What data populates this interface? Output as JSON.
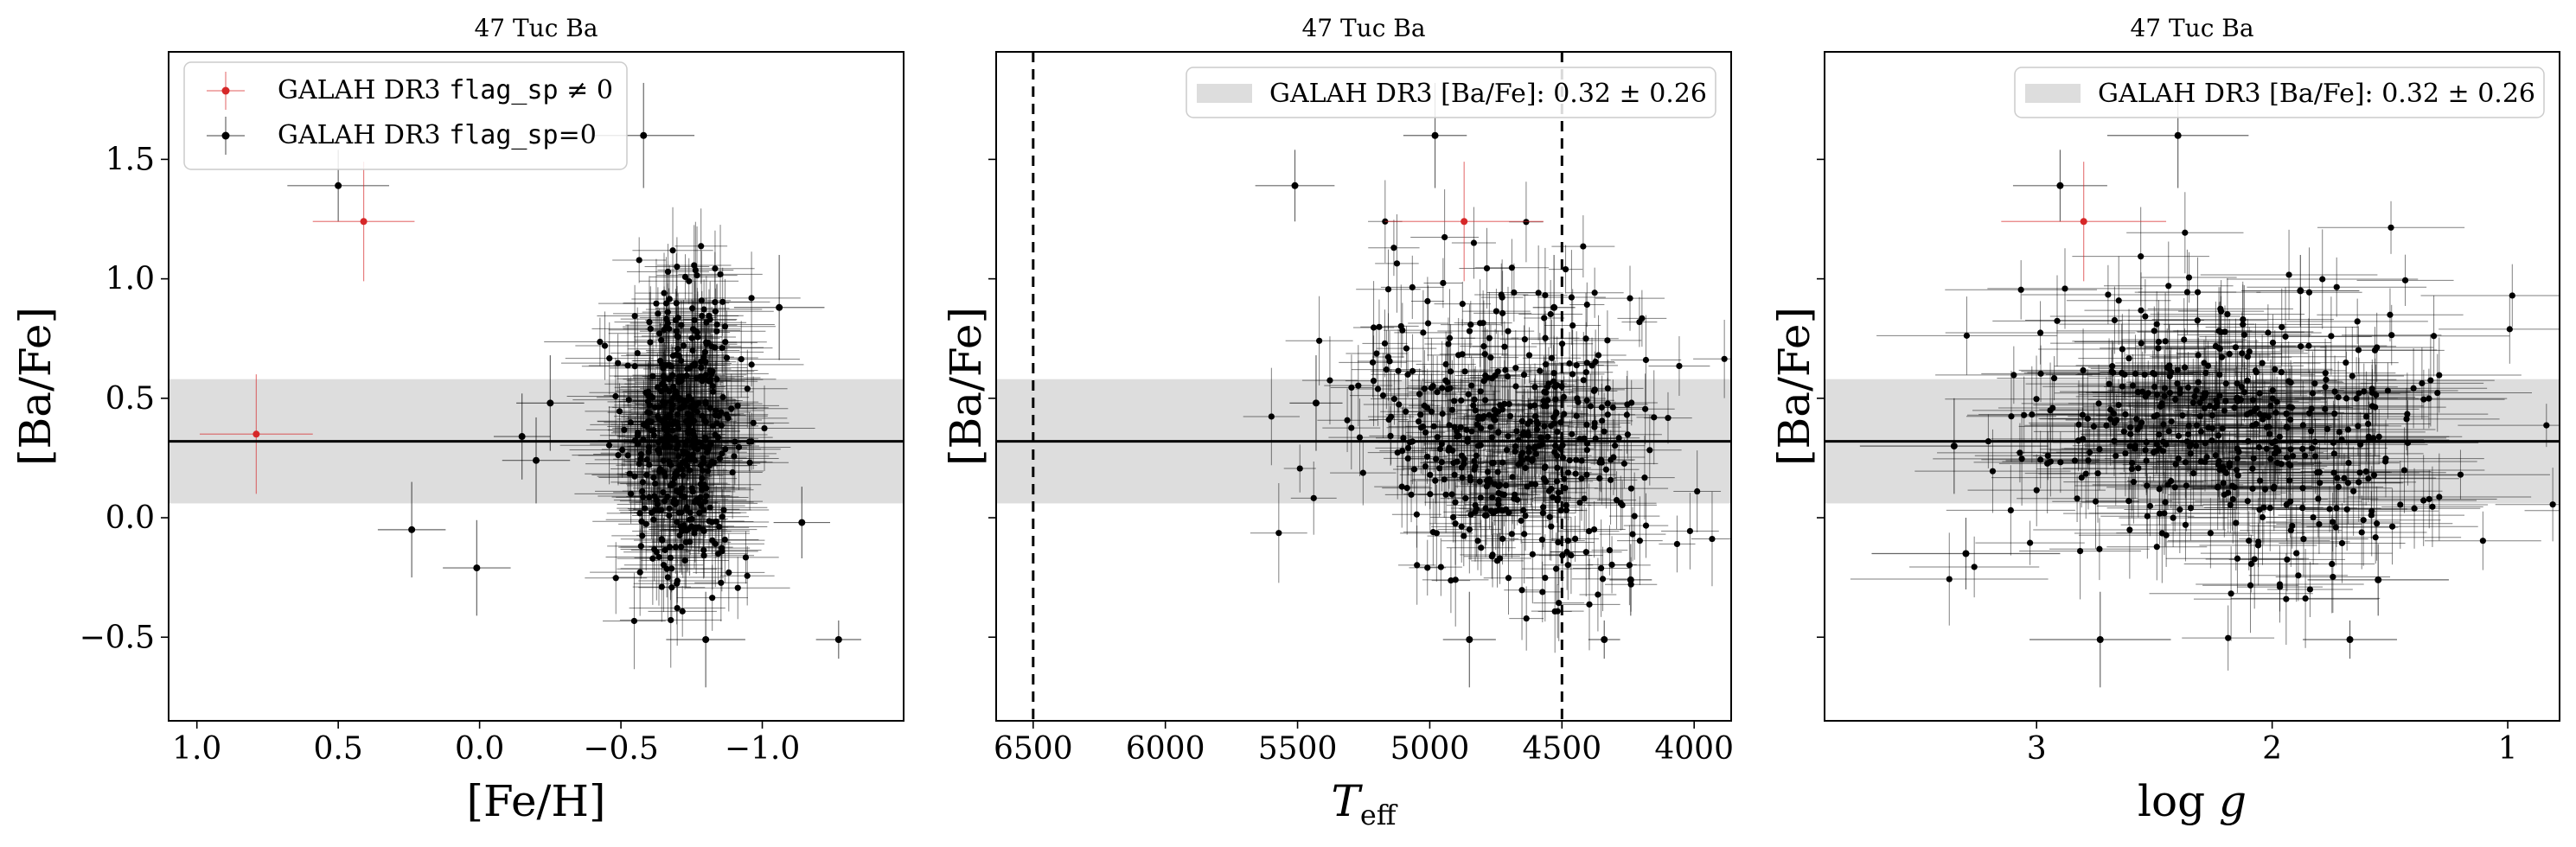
{
  "figure": {
    "colors": {
      "flagged": "#d62728",
      "unflagged": "#000000",
      "band": "#dddddd",
      "axes": "#000000"
    }
  },
  "legend_main": {
    "flag_nonzero": {
      "prefix": "GALAH DR3 ",
      "code": "flag_sp",
      "suffix": " ≠ 0"
    },
    "flag_zero": {
      "prefix": "GALAH DR3 ",
      "code": "flag_sp",
      "suffix": "=0"
    }
  },
  "chart_data": [
    {
      "type": "scatter",
      "title": "47 Tuc Ba",
      "xlabel": "[Fe/H]",
      "ylabel": "[Ba/Fe]",
      "xlim": [
        1.1,
        -1.5
      ],
      "ylim": [
        -0.85,
        1.95
      ],
      "xticks": [
        1.0,
        0.5,
        0.0,
        -0.5,
        -1.0
      ],
      "xtick_labels": [
        "1.0",
        "0.5",
        "0.0",
        "−0.5",
        "−1.0"
      ],
      "yticks": [
        -0.5,
        0.0,
        0.5,
        1.0,
        1.5
      ],
      "ytick_labels": [
        "−0.5",
        "0.0",
        "0.5",
        "1.0",
        "1.5"
      ],
      "show_yticklabels": true,
      "band": {
        "center": 0.32,
        "sigma": 0.26
      },
      "vlines": [],
      "legend_position": "upper-left",
      "legend_type": "flags",
      "cluster": {
        "x_center": -0.72,
        "x_spread": 0.1,
        "y_center": 0.35,
        "y_spread": 0.3,
        "n": 480,
        "xerr": 0.15,
        "yerr": 0.15
      },
      "flagged_points": [
        {
          "x": 0.79,
          "y": 0.35,
          "xerr": 0.2,
          "yerr": 0.25
        },
        {
          "x": 0.41,
          "y": 1.24,
          "xerr": 0.18,
          "yerr": 0.25
        }
      ],
      "outliers": [
        {
          "x": 0.5,
          "y": 1.39,
          "xerr": 0.18,
          "yerr": 0.15
        },
        {
          "x": -0.58,
          "y": 1.6,
          "xerr": 0.18,
          "yerr": 0.22
        },
        {
          "x": 0.24,
          "y": -0.05,
          "xerr": 0.12,
          "yerr": 0.2
        },
        {
          "x": 0.01,
          "y": -0.21,
          "xerr": 0.12,
          "yerr": 0.2
        },
        {
          "x": -0.8,
          "y": -0.51,
          "xerr": 0.14,
          "yerr": 0.2
        },
        {
          "x": -1.27,
          "y": -0.51,
          "xerr": 0.08,
          "yerr": 0.08
        },
        {
          "x": -1.06,
          "y": 0.88,
          "xerr": 0.16,
          "yerr": 0.22
        },
        {
          "x": -1.14,
          "y": -0.02,
          "xerr": 0.1,
          "yerr": 0.15
        },
        {
          "x": -0.25,
          "y": 0.48,
          "xerr": 0.12,
          "yerr": 0.2
        },
        {
          "x": -0.15,
          "y": 0.34,
          "xerr": 0.1,
          "yerr": 0.18
        },
        {
          "x": -0.2,
          "y": 0.24,
          "xerr": 0.12,
          "yerr": 0.18
        }
      ]
    },
    {
      "type": "scatter",
      "title": "47 Tuc Ba",
      "xlabel": "T_eff",
      "ylabel": "[Ba/Fe]",
      "xlim": [
        6640,
        3860
      ],
      "ylim": [
        -0.85,
        1.95
      ],
      "xticks": [
        6500,
        6000,
        5500,
        5000,
        4500,
        4000
      ],
      "xtick_labels": [
        "6500",
        "6000",
        "5500",
        "5000",
        "4500",
        "4000"
      ],
      "yticks": [
        -0.5,
        0.0,
        0.5,
        1.0,
        1.5
      ],
      "ytick_labels": [
        "−0.5",
        "0.0",
        "0.5",
        "1.0",
        "1.5"
      ],
      "show_yticklabels": false,
      "band": {
        "center": 0.32,
        "sigma": 0.26
      },
      "vlines": [
        6500,
        4500
      ],
      "legend_position": "upper-right",
      "legend_type": "band",
      "legend_text": "GALAH DR3 [Ba/Fe]: 0.32 ± 0.26",
      "cluster": {
        "x_center": 4700,
        "x_spread": 280,
        "y_center": 0.3,
        "y_spread": 0.3,
        "n": 480,
        "xerr": 100,
        "yerr": 0.15
      },
      "flagged_points": [
        {
          "x": 4870,
          "y": 1.24,
          "xerr": 300,
          "yerr": 0.25
        }
      ],
      "outliers": [
        {
          "x": 5510,
          "y": 1.39,
          "xerr": 150,
          "yerr": 0.15
        },
        {
          "x": 4980,
          "y": 1.6,
          "xerr": 120,
          "yerr": 0.22
        },
        {
          "x": 4850,
          "y": -0.51,
          "xerr": 100,
          "yerr": 0.2
        },
        {
          "x": 4340,
          "y": -0.51,
          "xerr": 60,
          "yerr": 0.08
        },
        {
          "x": 4530,
          "y": 0.88,
          "xerr": 80,
          "yerr": 0.22
        },
        {
          "x": 5430,
          "y": 0.48,
          "xerr": 100,
          "yerr": 0.2
        },
        {
          "x": 4240,
          "y": -0.26,
          "xerr": 80,
          "yerr": 0.15
        }
      ]
    },
    {
      "type": "scatter",
      "title": "47 Tuc Ba",
      "xlabel": "log g",
      "ylabel": "[Ba/Fe]",
      "xlim": [
        3.9,
        0.78
      ],
      "ylim": [
        -0.85,
        1.95
      ],
      "xticks": [
        3,
        2,
        1
      ],
      "xtick_labels": [
        "3",
        "2",
        "1"
      ],
      "yticks": [
        -0.5,
        0.0,
        0.5,
        1.0,
        1.5
      ],
      "ytick_labels": [
        "−0.5",
        "0.0",
        "0.5",
        "1.0",
        "1.5"
      ],
      "show_yticklabels": false,
      "band": {
        "center": 0.32,
        "sigma": 0.26
      },
      "vlines": [],
      "legend_position": "upper-right",
      "legend_type": "band",
      "legend_text": "GALAH DR3 [Ba/Fe]: 0.32 ± 0.26",
      "cluster": {
        "x_center": 2.2,
        "x_spread": 0.45,
        "y_center": 0.3,
        "y_spread": 0.28,
        "n": 480,
        "xerr": 0.3,
        "yerr": 0.15
      },
      "flagged_points": [
        {
          "x": 2.8,
          "y": 1.24,
          "xerr": 0.35,
          "yerr": 0.25
        }
      ],
      "outliers": [
        {
          "x": 2.9,
          "y": 1.39,
          "xerr": 0.2,
          "yerr": 0.15
        },
        {
          "x": 2.4,
          "y": 1.6,
          "xerr": 0.3,
          "yerr": 0.22
        },
        {
          "x": 2.73,
          "y": -0.51,
          "xerr": 0.3,
          "yerr": 0.2
        },
        {
          "x": 1.67,
          "y": -0.51,
          "xerr": 0.2,
          "yerr": 0.08
        },
        {
          "x": 1.88,
          "y": 0.95,
          "xerr": 0.25,
          "yerr": 0.15
        },
        {
          "x": 3.35,
          "y": 0.3,
          "xerr": 0.4,
          "yerr": 0.2
        },
        {
          "x": 3.3,
          "y": -0.15,
          "xerr": 0.4,
          "yerr": 0.15
        },
        {
          "x": 1.55,
          "y": -0.26,
          "xerr": 0.3,
          "yerr": 0.15
        }
      ]
    }
  ]
}
